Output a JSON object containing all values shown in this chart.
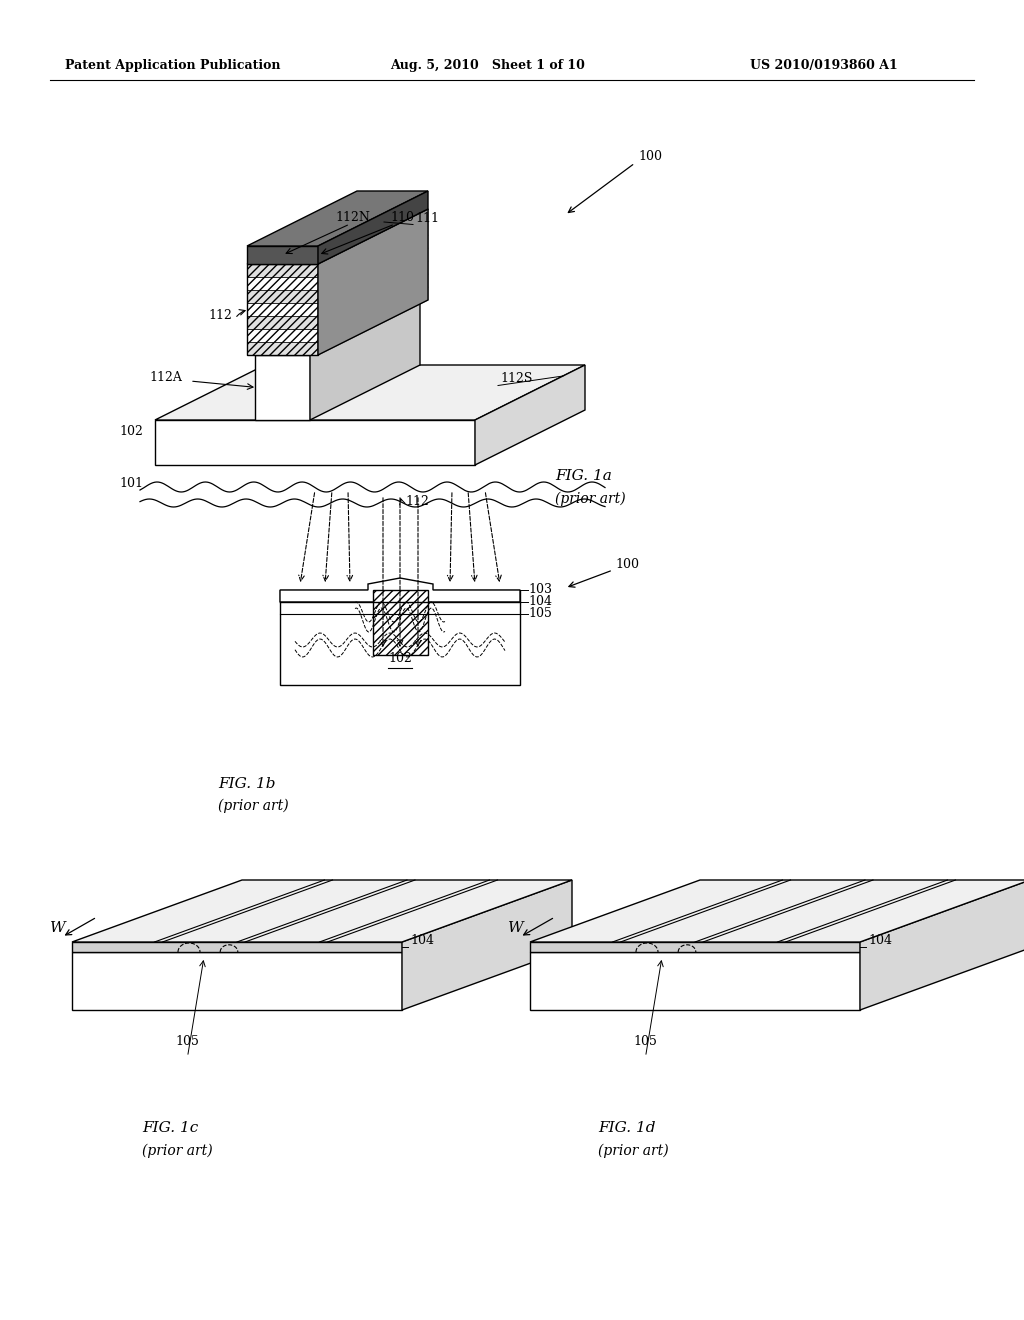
{
  "background_color": "#ffffff",
  "header_left": "Patent Application Publication",
  "header_middle": "Aug. 5, 2010   Sheet 1 of 10",
  "header_right": "US 2010/0193860 A1",
  "fig1a_label": "FIG. 1a",
  "fig1a_sub": "(prior art)",
  "fig1b_label": "FIG. 1b",
  "fig1b_sub": "(prior art)",
  "fig1c_label": "FIG. 1c",
  "fig1c_sub": "(prior art)",
  "fig1d_label": "FIG. 1d",
  "fig1d_sub": "(prior art)"
}
